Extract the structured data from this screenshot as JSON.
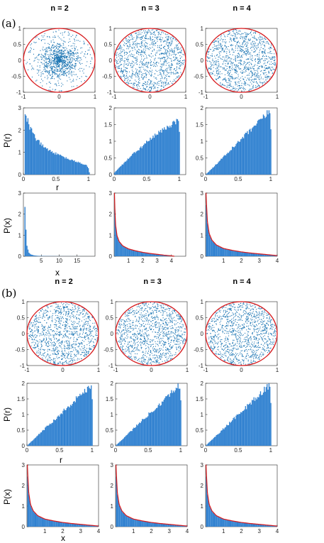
{
  "panel_labels": [
    "(a)",
    "(b)"
  ],
  "titles": [
    "n = 2",
    "n = 3",
    "n = 4"
  ],
  "row_labels": {
    "scatter": "",
    "radial": {
      "ylabel": "P(r)",
      "xlabel": "r"
    },
    "marginal": {
      "ylabel": "P(x)",
      "xlabel": "x"
    }
  },
  "colors": {
    "points": "#1f77b4",
    "bars": "#3081d0",
    "circle": "#d7191c",
    "fit": "#d7191c",
    "axis": "#262626"
  },
  "chart_data": [
    {
      "panel": "(a)",
      "n": 2,
      "kind": "scatter",
      "type": "scatter",
      "title": "n = 2",
      "description": "points concentrated near center",
      "xlim": [
        -1,
        1
      ],
      "ylim": [
        -1,
        1
      ],
      "xticks": [
        "-1",
        "0",
        "1"
      ],
      "yticks": [
        "-1",
        "-0.5",
        "0",
        "0.5",
        "1"
      ],
      "circle_radius": 1,
      "distribution": "center-peaked"
    },
    {
      "panel": "(a)",
      "n": 3,
      "kind": "scatter",
      "type": "scatter",
      "title": "n = 3",
      "xlim": [
        -1,
        1
      ],
      "ylim": [
        -1,
        1
      ],
      "xticks": [
        "-1",
        "0",
        "1"
      ],
      "yticks": [
        "-1",
        "-0.5",
        "0",
        "0.5",
        "1"
      ],
      "circle_radius": 1,
      "distribution": "uniform"
    },
    {
      "panel": "(a)",
      "n": 4,
      "kind": "scatter",
      "type": "scatter",
      "title": "n = 4",
      "xlim": [
        -1,
        1
      ],
      "ylim": [
        -1,
        1
      ],
      "xticks": [
        "-1",
        "0",
        "1"
      ],
      "yticks": [
        "-1",
        "-0.5",
        "0",
        "0.5",
        "1"
      ],
      "circle_radius": 1,
      "distribution": "uniform"
    },
    {
      "panel": "(a)",
      "n": 2,
      "kind": "hist_r",
      "type": "bar",
      "xlim": [
        0,
        1.1
      ],
      "ylim": [
        0,
        3
      ],
      "xticks": [
        "0",
        "0.5",
        "1"
      ],
      "yticks": [
        "0",
        "1",
        "2",
        "3"
      ],
      "ylabel": "P(r)",
      "xlabel": "r",
      "x": [
        0.02,
        0.05,
        0.1,
        0.2,
        0.3,
        0.4,
        0.5,
        0.6,
        0.7,
        0.8,
        0.9,
        0.97,
        1.0,
        1.02
      ],
      "y": [
        2.8,
        2.6,
        2.15,
        1.6,
        1.3,
        1.1,
        0.95,
        0.82,
        0.7,
        0.6,
        0.5,
        0.42,
        0.3,
        0.0
      ]
    },
    {
      "panel": "(a)",
      "n": 3,
      "kind": "hist_r",
      "type": "bar",
      "xlim": [
        0,
        1.1
      ],
      "ylim": [
        0,
        2
      ],
      "xticks": [
        "0",
        "0.5",
        "1"
      ],
      "yticks": [
        "0",
        "0.5",
        "1",
        "1.5",
        "2"
      ],
      "x": [
        0.0,
        0.1,
        0.2,
        0.3,
        0.4,
        0.5,
        0.6,
        0.7,
        0.8,
        0.9,
        0.97,
        1.0,
        1.01
      ],
      "y": [
        0.05,
        0.25,
        0.45,
        0.63,
        0.8,
        0.98,
        1.13,
        1.28,
        1.42,
        1.55,
        1.65,
        1.7,
        0.0
      ]
    },
    {
      "panel": "(a)",
      "n": 4,
      "kind": "hist_r",
      "type": "bar",
      "xlim": [
        0,
        1.1
      ],
      "ylim": [
        0,
        2
      ],
      "xticks": [
        "0",
        "0.5",
        "1"
      ],
      "yticks": [
        "0",
        "0.5",
        "1",
        "1.5",
        "2"
      ],
      "x": [
        0.0,
        0.2,
        0.4,
        0.6,
        0.8,
        0.95,
        1.0,
        1.01
      ],
      "y": [
        0.0,
        0.38,
        0.78,
        1.17,
        1.55,
        1.85,
        1.95,
        0.0
      ]
    },
    {
      "panel": "(a)",
      "n": 2,
      "kind": "hist_x",
      "type": "bar",
      "xlim": [
        0,
        20
      ],
      "ylim": [
        0,
        3
      ],
      "xticks": [
        "5",
        "10",
        "15"
      ],
      "yticks": [
        "0",
        "1",
        "2",
        "3"
      ],
      "ylabel": "P(x)",
      "xlabel": "x",
      "x": [
        0.3,
        0.6,
        1,
        1.5,
        2,
        3,
        4,
        6,
        10,
        20
      ],
      "y": [
        3.0,
        1.6,
        0.5,
        0.18,
        0.09,
        0.04,
        0.02,
        0.01,
        0.004,
        0.0
      ],
      "fit": false
    },
    {
      "panel": "(a)",
      "n": 3,
      "kind": "hist_x",
      "type": "bar",
      "xlim": [
        0,
        5
      ],
      "ylim": [
        0,
        3
      ],
      "xticks": [
        "1",
        "2",
        "3",
        "4"
      ],
      "yticks": [
        "0",
        "1",
        "2",
        "3"
      ],
      "x": [
        0.02,
        0.05,
        0.1,
        0.2,
        0.35,
        0.6,
        1,
        1.5,
        2,
        2.5,
        3,
        3.5,
        4,
        4.2
      ],
      "y": [
        3.0,
        2.2,
        1.45,
        0.95,
        0.68,
        0.48,
        0.34,
        0.25,
        0.18,
        0.13,
        0.09,
        0.05,
        0.02,
        0.0
      ],
      "fit": true
    },
    {
      "panel": "(a)",
      "n": 4,
      "kind": "hist_x",
      "type": "bar",
      "xlim": [
        0,
        4
      ],
      "ylim": [
        0,
        3
      ],
      "xticks": [
        "1",
        "2",
        "3",
        "4"
      ],
      "yticks": [
        "0",
        "1",
        "2",
        "3"
      ],
      "x": [
        0.02,
        0.05,
        0.1,
        0.2,
        0.35,
        0.6,
        1,
        1.5,
        2,
        2.5,
        3,
        3.5,
        4
      ],
      "y": [
        3.0,
        2.4,
        1.6,
        1.05,
        0.75,
        0.52,
        0.36,
        0.27,
        0.2,
        0.15,
        0.11,
        0.07,
        0.03
      ],
      "fit": true
    },
    {
      "panel": "(b)",
      "n": 2,
      "kind": "scatter",
      "type": "scatter",
      "title": "n = 2",
      "xlim": [
        -1,
        1
      ],
      "ylim": [
        -1,
        1
      ],
      "xticks": [
        "-1",
        "0",
        "1"
      ],
      "yticks": [
        "-1",
        "-0.5",
        "0",
        "0.5",
        "1"
      ],
      "circle_radius": 1,
      "distribution": "uniform"
    },
    {
      "panel": "(b)",
      "n": 3,
      "kind": "scatter",
      "type": "scatter",
      "title": "n = 3",
      "xlim": [
        -1,
        1
      ],
      "ylim": [
        -1,
        1
      ],
      "xticks": [
        "-1",
        "0",
        "1"
      ],
      "yticks": [
        "-1",
        "-0.5",
        "0",
        "0.5",
        "1"
      ],
      "circle_radius": 1,
      "distribution": "uniform"
    },
    {
      "panel": "(b)",
      "n": 4,
      "kind": "scatter",
      "type": "scatter",
      "title": "n = 4",
      "xlim": [
        -1,
        1
      ],
      "ylim": [
        -1,
        1
      ],
      "xticks": [
        "-1",
        "0",
        "1"
      ],
      "yticks": [
        "-1",
        "-0.5",
        "0",
        "0.5",
        "1"
      ],
      "circle_radius": 1,
      "distribution": "uniform"
    },
    {
      "panel": "(b)",
      "n": 2,
      "kind": "hist_r",
      "type": "bar",
      "xlim": [
        0,
        1.1
      ],
      "ylim": [
        0,
        2
      ],
      "xticks": [
        "0",
        "0.5",
        "1"
      ],
      "yticks": [
        "0",
        "0.5",
        "1",
        "1.5",
        "2"
      ],
      "ylabel": "P(r)",
      "xlabel": "r",
      "x": [
        0.0,
        0.2,
        0.4,
        0.6,
        0.8,
        0.95,
        1.0,
        1.01
      ],
      "y": [
        0.0,
        0.4,
        0.8,
        1.2,
        1.6,
        1.9,
        2.0,
        0.0
      ]
    },
    {
      "panel": "(b)",
      "n": 3,
      "kind": "hist_r",
      "type": "bar",
      "xlim": [
        0,
        1.1
      ],
      "ylim": [
        0,
        2
      ],
      "xticks": [
        "0",
        "0.5",
        "1"
      ],
      "yticks": [
        "0",
        "0.5",
        "1",
        "1.5",
        "2"
      ],
      "x": [
        0.0,
        0.2,
        0.4,
        0.6,
        0.8,
        0.95,
        1.0,
        1.01
      ],
      "y": [
        0.0,
        0.4,
        0.8,
        1.2,
        1.6,
        1.9,
        1.98,
        0.0
      ]
    },
    {
      "panel": "(b)",
      "n": 4,
      "kind": "hist_r",
      "type": "bar",
      "xlim": [
        0,
        1.1
      ],
      "ylim": [
        0,
        2
      ],
      "xticks": [
        "0",
        "0.5",
        "1"
      ],
      "yticks": [
        "0",
        "0.5",
        "1",
        "1.5",
        "2"
      ],
      "x": [
        0.0,
        0.2,
        0.4,
        0.6,
        0.8,
        0.95,
        1.0,
        1.01
      ],
      "y": [
        0.0,
        0.4,
        0.8,
        1.2,
        1.6,
        1.9,
        1.97,
        0.0
      ]
    },
    {
      "panel": "(b)",
      "n": 2,
      "kind": "hist_x",
      "type": "bar",
      "xlim": [
        0,
        4
      ],
      "ylim": [
        0,
        3
      ],
      "xticks": [
        "1",
        "2",
        "3",
        "4"
      ],
      "yticks": [
        "0",
        "1",
        "2",
        "3"
      ],
      "ylabel": "P(x)",
      "xlabel": "x",
      "x": [
        0.02,
        0.05,
        0.1,
        0.2,
        0.35,
        0.6,
        1,
        1.5,
        2,
        2.5,
        3,
        3.5,
        4
      ],
      "y": [
        3.0,
        2.4,
        1.6,
        1.05,
        0.75,
        0.52,
        0.36,
        0.27,
        0.2,
        0.15,
        0.11,
        0.07,
        0.03
      ],
      "fit": true
    },
    {
      "panel": "(b)",
      "n": 3,
      "kind": "hist_x",
      "type": "bar",
      "xlim": [
        0,
        4
      ],
      "ylim": [
        0,
        3
      ],
      "xticks": [
        "1",
        "2",
        "3",
        "4"
      ],
      "yticks": [
        "0",
        "1",
        "2",
        "3"
      ],
      "x": [
        0.02,
        0.05,
        0.1,
        0.2,
        0.35,
        0.6,
        1,
        1.5,
        2,
        2.5,
        3,
        3.5,
        4
      ],
      "y": [
        3.0,
        2.4,
        1.6,
        1.05,
        0.75,
        0.52,
        0.36,
        0.27,
        0.2,
        0.15,
        0.11,
        0.07,
        0.03
      ],
      "fit": true
    },
    {
      "panel": "(b)",
      "n": 4,
      "kind": "hist_x",
      "type": "bar",
      "xlim": [
        0,
        4
      ],
      "ylim": [
        0,
        3
      ],
      "xticks": [
        "1",
        "2",
        "3",
        "4"
      ],
      "yticks": [
        "0",
        "1",
        "2",
        "3"
      ],
      "x": [
        0.02,
        0.05,
        0.1,
        0.2,
        0.35,
        0.6,
        1,
        1.5,
        2,
        2.5,
        3,
        3.5,
        4
      ],
      "y": [
        3.0,
        2.4,
        1.6,
        1.05,
        0.75,
        0.52,
        0.36,
        0.27,
        0.2,
        0.15,
        0.11,
        0.07,
        0.03
      ],
      "fit": true
    }
  ]
}
